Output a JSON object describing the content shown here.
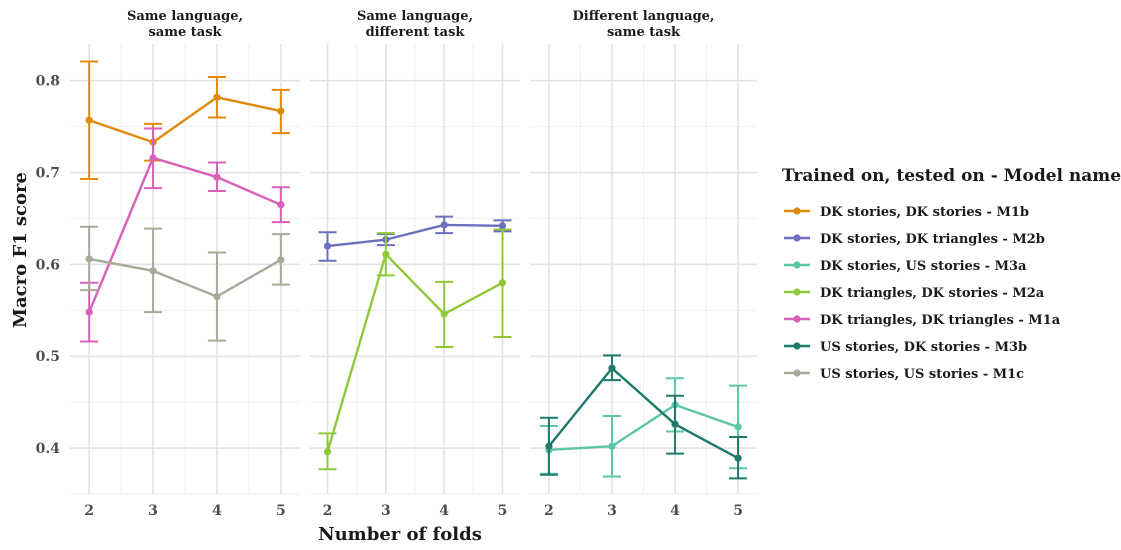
{
  "chart_data": {
    "type": "line",
    "xlabel": "Number of folds",
    "ylabel": "Macro F1 score",
    "x_ticks": [
      2,
      3,
      4,
      5
    ],
    "y_ticks": [
      0.4,
      0.5,
      0.6,
      0.7,
      0.8
    ],
    "y_tick_labels": [
      "0.4",
      "0.5",
      "0.6",
      "0.7",
      "0.8"
    ],
    "ylim": [
      0.35,
      0.84
    ],
    "xlim": [
      1.7,
      5.3
    ],
    "grid": true,
    "legend": {
      "title": "Trained on, tested on - Model name",
      "position": "right",
      "entries": [
        {
          "label": "DK stories, DK stories - M1b",
          "color": "#e08a0b"
        },
        {
          "label": "DK stories, DK triangles - M2b",
          "color": "#6a6fbf"
        },
        {
          "label": "DK stories, US stories - M3a",
          "color": "#5bc5a7"
        },
        {
          "label": "DK triangles, DK stories - M2a",
          "color": "#8fc93a"
        },
        {
          "label": "DK triangles, DK triangles - M1a",
          "color": "#d760b9"
        },
        {
          "label": "US stories, DK stories - M3b",
          "color": "#1f7a6c"
        },
        {
          "label": "US stories, US stories - M1c",
          "color": "#a8a99a"
        }
      ]
    },
    "facets": [
      {
        "title_lines": [
          "Same language,",
          "same task"
        ],
        "series": [
          {
            "name": "DK stories, DK stories - M1b",
            "color": "#e08a0b",
            "x": [
              2,
              3,
              4,
              5
            ],
            "y": [
              0.757,
              0.733,
              0.782,
              0.767
            ],
            "lo": [
              0.693,
              0.713,
              0.76,
              0.743
            ],
            "hi": [
              0.821,
              0.753,
              0.804,
              0.79
            ]
          },
          {
            "name": "DK triangles, DK triangles - M1a",
            "color": "#d760b9",
            "x": [
              2,
              3,
              4,
              5
            ],
            "y": [
              0.548,
              0.716,
              0.695,
              0.665
            ],
            "lo": [
              0.516,
              0.683,
              0.68,
              0.646
            ],
            "hi": [
              0.58,
              0.748,
              0.711,
              0.684
            ]
          },
          {
            "name": "US stories, US stories - M1c",
            "color": "#a8a99a",
            "x": [
              2,
              3,
              4,
              5
            ],
            "y": [
              0.606,
              0.593,
              0.565,
              0.605
            ],
            "lo": [
              0.572,
              0.548,
              0.517,
              0.578
            ],
            "hi": [
              0.641,
              0.639,
              0.613,
              0.633
            ]
          }
        ]
      },
      {
        "title_lines": [
          "Same language,",
          "different task"
        ],
        "series": [
          {
            "name": "DK stories, DK triangles - M2b",
            "color": "#6a6fbf",
            "x": [
              2,
              3,
              4,
              5
            ],
            "y": [
              0.62,
              0.627,
              0.643,
              0.642
            ],
            "lo": [
              0.604,
              0.621,
              0.634,
              0.636
            ],
            "hi": [
              0.635,
              0.633,
              0.652,
              0.648
            ]
          },
          {
            "name": "DK triangles, DK stories - M2a",
            "color": "#8fc93a",
            "x": [
              2,
              3,
              4,
              5
            ],
            "y": [
              0.396,
              0.611,
              0.546,
              0.58
            ],
            "lo": [
              0.377,
              0.588,
              0.51,
              0.521
            ],
            "hi": [
              0.416,
              0.634,
              0.581,
              0.638
            ]
          }
        ]
      },
      {
        "title_lines": [
          "Different language,",
          "same task"
        ],
        "series": [
          {
            "name": "DK stories, US stories - M3a",
            "color": "#5bc5a7",
            "x": [
              2,
              3,
              4,
              5
            ],
            "y": [
              0.398,
              0.402,
              0.447,
              0.423
            ],
            "lo": [
              0.372,
              0.369,
              0.418,
              0.378
            ],
            "hi": [
              0.424,
              0.435,
              0.476,
              0.468
            ]
          },
          {
            "name": "US stories, DK stories - M3b",
            "color": "#1f7a6c",
            "x": [
              2,
              3,
              4,
              5
            ],
            "y": [
              0.402,
              0.487,
              0.426,
              0.389
            ],
            "lo": [
              0.371,
              0.474,
              0.394,
              0.367
            ],
            "hi": [
              0.433,
              0.501,
              0.457,
              0.412
            ]
          }
        ]
      }
    ]
  }
}
